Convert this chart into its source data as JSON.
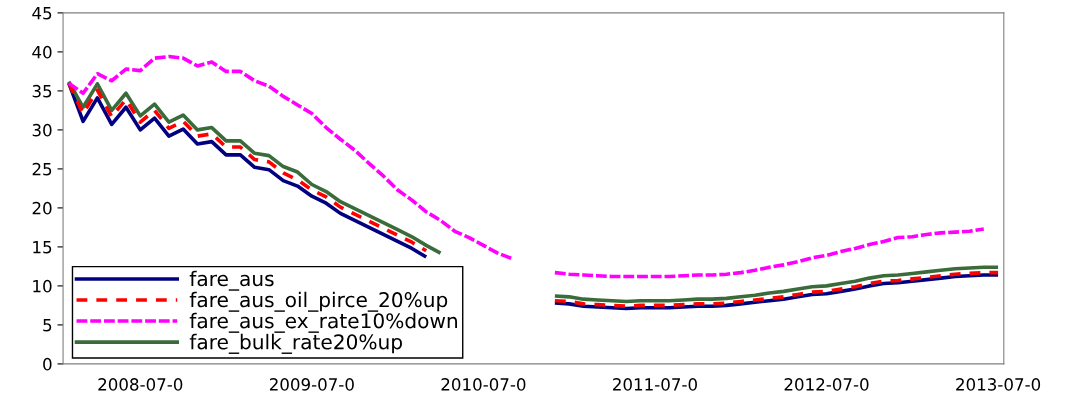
{
  "chart_data": {
    "type": "line",
    "categories": [
      null,
      null,
      null,
      null,
      null,
      "2008-07-0",
      null,
      null,
      null,
      null,
      null,
      null,
      null,
      null,
      null,
      null,
      null,
      "2009-07-0",
      null,
      null,
      null,
      null,
      null,
      null,
      null,
      null,
      null,
      null,
      null,
      "2010-07-0",
      null,
      null,
      null,
      null,
      null,
      null,
      null,
      null,
      null,
      null,
      null,
      "2011-07-0",
      null,
      null,
      null,
      null,
      null,
      null,
      null,
      null,
      null,
      null,
      null,
      "2012-07-0",
      null,
      null,
      null,
      null,
      null,
      null,
      null,
      null,
      null,
      null,
      null,
      "2013-07-0"
    ],
    "series": [
      {
        "name": "fare_aus",
        "color": "#000080",
        "line_style": "solid",
        "values": [
          36.0,
          31.1,
          34.1,
          30.7,
          32.9,
          30.0,
          31.5,
          29.2,
          30.1,
          28.2,
          28.5,
          26.8,
          26.8,
          25.2,
          24.9,
          23.5,
          22.8,
          21.5,
          20.6,
          19.3,
          18.4,
          17.5,
          16.6,
          15.7,
          14.8,
          13.7,
          null,
          null,
          null,
          null,
          null,
          null,
          null,
          null,
          7.8,
          7.7,
          7.4,
          7.3,
          7.2,
          7.1,
          7.2,
          7.2,
          7.2,
          7.3,
          7.4,
          7.4,
          7.5,
          7.7,
          7.9,
          8.1,
          8.3,
          8.6,
          8.9,
          9.0,
          9.3,
          9.6,
          10.0,
          10.3,
          10.4,
          10.6,
          10.8,
          11.0,
          11.2,
          11.3,
          11.4,
          11.4
        ]
      },
      {
        "name": "fare_aus_oil_pirce_20%up",
        "color": "#ff0000",
        "line_style": "dashed",
        "values": [
          36.0,
          32.1,
          35.1,
          31.7,
          33.9,
          31.0,
          32.5,
          30.2,
          31.1,
          29.2,
          29.5,
          27.8,
          27.8,
          26.2,
          25.9,
          24.5,
          23.6,
          22.3,
          21.4,
          20.1,
          19.2,
          18.3,
          17.4,
          16.5,
          15.6,
          14.5,
          null,
          null,
          null,
          null,
          null,
          null,
          null,
          null,
          8.1,
          8.0,
          7.7,
          7.6,
          7.5,
          7.4,
          7.5,
          7.5,
          7.5,
          7.6,
          7.7,
          7.7,
          7.8,
          8.0,
          8.2,
          8.4,
          8.6,
          8.9,
          9.2,
          9.3,
          9.6,
          9.9,
          10.3,
          10.6,
          10.7,
          10.9,
          11.1,
          11.3,
          11.5,
          11.6,
          11.7,
          11.7
        ]
      },
      {
        "name": "fare_aus_ex_rate10%down",
        "color": "#ff00ff",
        "line_style": "longdash",
        "values": [
          36.0,
          34.7,
          37.2,
          36.3,
          37.8,
          37.6,
          39.2,
          39.4,
          39.2,
          38.2,
          38.7,
          37.5,
          37.5,
          36.3,
          35.6,
          34.3,
          33.2,
          32.1,
          30.3,
          28.8,
          27.4,
          25.7,
          24.1,
          22.3,
          21.0,
          19.5,
          18.4,
          17.0,
          16.2,
          15.2,
          14.2,
          13.5,
          null,
          null,
          11.7,
          11.5,
          11.4,
          11.3,
          11.2,
          11.2,
          11.2,
          11.2,
          11.2,
          11.3,
          11.4,
          11.4,
          11.5,
          11.7,
          12.0,
          12.4,
          12.7,
          13.1,
          13.6,
          13.9,
          14.4,
          14.8,
          15.3,
          15.7,
          16.2,
          16.3,
          16.6,
          16.8,
          16.9,
          17.0,
          17.3,
          null
        ]
      },
      {
        "name": "fare_bulk_rate20%up",
        "color": "#3a6b3a",
        "line_style": "solid",
        "values": [
          36.2,
          32.9,
          35.9,
          32.5,
          34.7,
          31.8,
          33.3,
          31.0,
          31.9,
          30.0,
          30.3,
          28.6,
          28.6,
          27.0,
          26.7,
          25.3,
          24.6,
          23.0,
          22.1,
          20.8,
          19.9,
          19.0,
          18.1,
          17.2,
          16.3,
          15.2,
          14.2,
          null,
          null,
          null,
          null,
          null,
          null,
          null,
          8.7,
          8.6,
          8.3,
          8.2,
          8.1,
          8.0,
          8.1,
          8.1,
          8.1,
          8.2,
          8.3,
          8.3,
          8.4,
          8.6,
          8.8,
          9.1,
          9.3,
          9.6,
          9.9,
          10.0,
          10.3,
          10.6,
          11.0,
          11.3,
          11.4,
          11.6,
          11.8,
          12.0,
          12.2,
          12.3,
          12.4,
          12.4
        ]
      }
    ],
    "ylim": [
      0,
      45
    ],
    "yticks": [
      0,
      5,
      10,
      15,
      20,
      25,
      30,
      35,
      40,
      45
    ],
    "grid": false,
    "legend": "bottom left",
    "marker": "none"
  }
}
